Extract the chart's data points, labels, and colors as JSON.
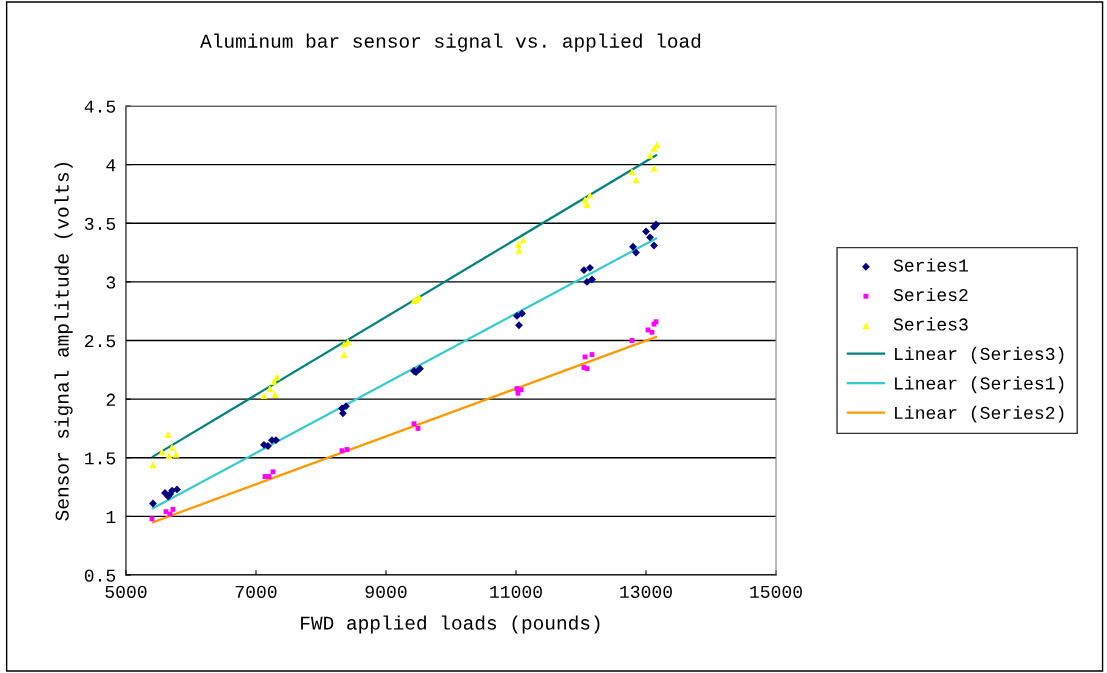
{
  "chart_data": {
    "type": "scatter",
    "title": "Aluminum bar sensor signal vs. applied load",
    "xlabel": "FWD applied loads (pounds)",
    "ylabel": "Sensor signal amplitude (volts)",
    "xlim": [
      5000,
      15000
    ],
    "xticks": [
      5000,
      7000,
      9000,
      11000,
      13000,
      15000
    ],
    "ylim": [
      0.5,
      4.5
    ],
    "yticks": [
      0.5,
      1,
      1.5,
      2,
      2.5,
      3,
      3.5,
      4,
      4.5
    ],
    "grid": "y",
    "legend": "right",
    "series": [
      {
        "name": "Series1",
        "type": "scatter",
        "marker": "diamond",
        "color": "#000080",
        "x": [
          5415,
          5600,
          5710,
          5680,
          5785,
          5650,
          7123,
          7246,
          7308,
          7185,
          8323,
          8385,
          8338,
          9431,
          9523,
          9462,
          11015,
          11092,
          11046,
          12046,
          12138,
          12092,
          12169,
          12800,
          12846,
          13000,
          13123,
          13154,
          13123,
          13062
        ],
        "values": [
          1.11,
          1.2,
          1.22,
          1.19,
          1.23,
          1.17,
          1.61,
          1.65,
          1.65,
          1.6,
          1.92,
          1.94,
          1.88,
          2.24,
          2.26,
          2.23,
          2.71,
          2.73,
          2.63,
          3.1,
          3.12,
          3.0,
          3.02,
          3.3,
          3.25,
          3.43,
          3.47,
          3.49,
          3.31,
          3.38
        ]
      },
      {
        "name": "Series2",
        "type": "scatter",
        "marker": "square",
        "color": "#ff00ff",
        "x": [
          5400,
          5615,
          5723,
          5677,
          7138,
          7262,
          7200,
          8323,
          8400,
          9431,
          9492,
          11015,
          11031,
          11077,
          12062,
          12092,
          12169,
          12046,
          12785,
          13031,
          13123,
          13154,
          13092
        ],
        "values": [
          0.98,
          1.04,
          1.06,
          1.02,
          1.34,
          1.38,
          1.34,
          1.56,
          1.57,
          1.79,
          1.75,
          2.09,
          2.05,
          2.08,
          2.36,
          2.26,
          2.38,
          2.27,
          2.5,
          2.59,
          2.64,
          2.66,
          2.57
        ]
      },
      {
        "name": "Series3",
        "type": "scatter",
        "marker": "triangle",
        "color": "#ffff00",
        "x": [
          5415,
          5646,
          5662,
          5769,
          5708,
          5554,
          7123,
          7277,
          7323,
          7292,
          7215,
          8354,
          8354,
          8415,
          9431,
          9508,
          9462,
          11031,
          11046,
          11108,
          12062,
          12138,
          12092,
          12785,
          12846,
          13123,
          13169,
          13123,
          13062
        ],
        "values": [
          1.44,
          1.7,
          1.52,
          1.53,
          1.59,
          1.55,
          2.03,
          2.15,
          2.19,
          2.04,
          2.09,
          2.47,
          2.38,
          2.49,
          2.84,
          2.87,
          2.85,
          3.32,
          3.27,
          3.36,
          3.7,
          3.74,
          3.66,
          3.94,
          3.87,
          4.14,
          4.17,
          3.97,
          4.08
        ]
      },
      {
        "name": "Linear (Series3)",
        "type": "line",
        "marker": "none",
        "color": "#008080",
        "x": [
          5415,
          13154
        ],
        "values": [
          1.51,
          4.08
        ]
      },
      {
        "name": "Linear (Series1)",
        "type": "line",
        "marker": "none",
        "color": "#33cccc",
        "x": [
          5415,
          13154
        ],
        "values": [
          1.07,
          3.37
        ]
      },
      {
        "name": "Linear (Series2)",
        "type": "line",
        "marker": "none",
        "color": "#ff9900",
        "x": [
          5415,
          13154
        ],
        "values": [
          0.95,
          2.53
        ]
      }
    ]
  }
}
